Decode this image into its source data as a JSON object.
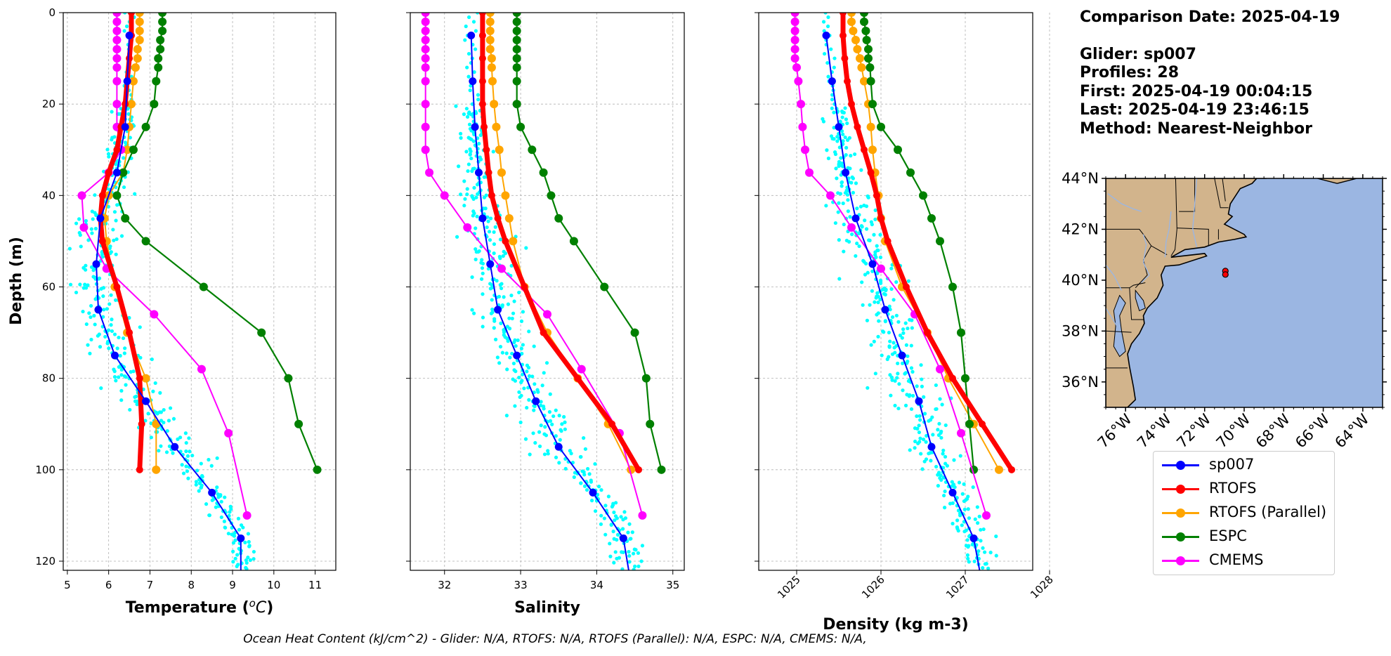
{
  "info": {
    "comparison_date": "Comparison Date: 2025-04-19",
    "glider": "Glider: sp007",
    "profiles": "Profiles: 28",
    "first": "First: 2025-04-19 00:04:15",
    "last": "Last: 2025-04-19 23:46:15",
    "method": "Method: Nearest-Neighbor"
  },
  "footer": "Ocean Heat Content (kJ/cm^2) - Glider: N/A,  RTOFS: N/A,  RTOFS (Parallel): N/A,  ESPC: N/A,  CMEMS: N/A,",
  "colors": {
    "sp007": "#0000ff",
    "RTOFS": "#ff0000",
    "RTOFS (Parallel)": "#ffa500",
    "ESPC": "#008000",
    "CMEMS": "#ff00ff",
    "scatter": "#00ffff",
    "land": "#d2b48c",
    "ocean": "#9bb6e2"
  },
  "legend": [
    {
      "label": "sp007",
      "color": "#0000ff"
    },
    {
      "label": "RTOFS",
      "color": "#ff0000"
    },
    {
      "label": "RTOFS (Parallel)",
      "color": "#ffa500"
    },
    {
      "label": "ESPC",
      "color": "#008000"
    },
    {
      "label": "CMEMS",
      "color": "#ff00ff"
    }
  ],
  "chart_data": [
    {
      "type": "line",
      "xlabel": "Temperature (°C)",
      "ylabel": "Depth (m)",
      "xlim": [
        4.9,
        11.5
      ],
      "ylim": [
        122,
        0
      ],
      "xticks": [
        "5",
        "6",
        "7",
        "8",
        "9",
        "10",
        "11"
      ],
      "yticks": [
        "0",
        "20",
        "40",
        "60",
        "80",
        "100",
        "120"
      ],
      "grid": true,
      "series": [
        {
          "name": "sp007",
          "depth": [
            5,
            15,
            25,
            35,
            45,
            55,
            65,
            75,
            85,
            95,
            105,
            115,
            125
          ],
          "values": [
            6.5,
            6.45,
            6.4,
            6.2,
            5.8,
            5.7,
            5.75,
            6.15,
            6.9,
            7.6,
            8.5,
            9.2,
            9.2
          ]
        },
        {
          "name": "RTOFS",
          "depth": [
            0,
            5,
            10,
            15,
            20,
            25,
            30,
            35,
            40,
            45,
            50,
            60,
            70,
            80,
            90,
            100
          ],
          "values": [
            6.55,
            6.55,
            6.5,
            6.45,
            6.4,
            6.3,
            6.2,
            6.0,
            5.85,
            5.8,
            5.85,
            6.2,
            6.5,
            6.75,
            6.8,
            6.75
          ]
        },
        {
          "name": "RTOFS (Parallel)",
          "depth": [
            0,
            2,
            4,
            6,
            8,
            10,
            12,
            15,
            20,
            25,
            30,
            35,
            40,
            45,
            50,
            60,
            70,
            80,
            90,
            100
          ],
          "values": [
            6.75,
            6.75,
            6.75,
            6.75,
            6.7,
            6.7,
            6.65,
            6.6,
            6.55,
            6.5,
            6.45,
            6.35,
            6.0,
            5.9,
            5.95,
            6.15,
            6.45,
            6.9,
            7.15,
            7.15
          ]
        },
        {
          "name": "ESPC",
          "depth": [
            0,
            2,
            4,
            6,
            8,
            10,
            12,
            15,
            20,
            25,
            30,
            35,
            40,
            45,
            50,
            60,
            70,
            80,
            90,
            100
          ],
          "values": [
            7.3,
            7.3,
            7.3,
            7.25,
            7.25,
            7.2,
            7.2,
            7.15,
            7.1,
            6.9,
            6.6,
            6.35,
            6.2,
            6.4,
            6.9,
            8.3,
            9.7,
            10.35,
            10.6,
            11.05
          ]
        },
        {
          "name": "CMEMS",
          "depth": [
            0,
            2,
            4,
            6,
            8,
            10,
            12,
            15,
            20,
            25,
            30,
            35,
            40,
            47,
            56,
            66,
            78,
            92,
            110
          ],
          "values": [
            6.2,
            6.2,
            6.2,
            6.2,
            6.2,
            6.2,
            6.2,
            6.2,
            6.2,
            6.2,
            6.3,
            6.0,
            5.35,
            5.4,
            5.95,
            7.1,
            8.25,
            8.9,
            9.35
          ]
        }
      ]
    },
    {
      "type": "line",
      "xlabel": "Salinity",
      "xlim": [
        31.55,
        35.15
      ],
      "ylim": [
        122,
        0
      ],
      "xticks": [
        "32",
        "33",
        "34",
        "35"
      ],
      "yticks": [
        "0",
        "20",
        "40",
        "60",
        "80",
        "100",
        "120"
      ],
      "grid": true,
      "series": [
        {
          "name": "sp007",
          "depth": [
            5,
            15,
            25,
            35,
            45,
            55,
            65,
            75,
            85,
            95,
            105,
            115,
            125
          ],
          "values": [
            32.35,
            32.37,
            32.4,
            32.45,
            32.5,
            32.6,
            32.7,
            32.95,
            33.2,
            33.5,
            33.95,
            34.35,
            34.45
          ]
        },
        {
          "name": "RTOFS",
          "depth": [
            0,
            5,
            10,
            15,
            20,
            25,
            30,
            35,
            40,
            45,
            50,
            60,
            70,
            80,
            90,
            100
          ],
          "values": [
            32.5,
            32.5,
            32.5,
            32.5,
            32.5,
            32.52,
            32.55,
            32.58,
            32.62,
            32.7,
            32.8,
            33.05,
            33.3,
            33.75,
            34.2,
            34.55
          ]
        },
        {
          "name": "RTOFS (Parallel)",
          "depth": [
            0,
            2,
            4,
            6,
            8,
            10,
            12,
            15,
            20,
            25,
            30,
            35,
            40,
            45,
            50,
            60,
            70,
            80,
            90,
            100
          ],
          "values": [
            32.6,
            32.6,
            32.6,
            32.6,
            32.6,
            32.62,
            32.62,
            32.63,
            32.65,
            32.68,
            32.72,
            32.75,
            32.8,
            32.85,
            32.9,
            33.05,
            33.35,
            33.75,
            34.15,
            34.45
          ]
        },
        {
          "name": "ESPC",
          "depth": [
            0,
            2,
            4,
            6,
            8,
            10,
            12,
            15,
            20,
            25,
            30,
            35,
            40,
            45,
            50,
            60,
            70,
            80,
            90,
            100
          ],
          "values": [
            32.95,
            32.95,
            32.95,
            32.95,
            32.95,
            32.95,
            32.95,
            32.95,
            32.95,
            33.0,
            33.15,
            33.3,
            33.4,
            33.5,
            33.7,
            34.1,
            34.5,
            34.65,
            34.7,
            34.85
          ]
        },
        {
          "name": "CMEMS",
          "depth": [
            0,
            2,
            4,
            6,
            8,
            10,
            12,
            15,
            20,
            25,
            30,
            35,
            40,
            47,
            56,
            66,
            78,
            92,
            110
          ],
          "values": [
            31.75,
            31.75,
            31.75,
            31.75,
            31.75,
            31.75,
            31.75,
            31.75,
            31.75,
            31.75,
            31.75,
            31.8,
            32.0,
            32.3,
            32.75,
            33.35,
            33.8,
            34.3,
            34.6
          ]
        }
      ]
    },
    {
      "type": "line",
      "xlabel": "Density (kg m-3)",
      "xlim": [
        1024.55,
        1027.8
      ],
      "ylim": [
        122,
        0
      ],
      "xticks": [
        "1025",
        "1026",
        "1027",
        "1028"
      ],
      "yticks": [
        "0",
        "20",
        "40",
        "60",
        "80",
        "100",
        "120"
      ],
      "grid": true,
      "series": [
        {
          "name": "sp007",
          "depth": [
            5,
            15,
            25,
            35,
            45,
            55,
            65,
            75,
            85,
            95,
            105,
            115,
            125
          ],
          "values": [
            1025.35,
            1025.42,
            1025.5,
            1025.58,
            1025.7,
            1025.9,
            1026.05,
            1026.25,
            1026.45,
            1026.6,
            1026.85,
            1027.1,
            1027.2
          ]
        },
        {
          "name": "RTOFS",
          "depth": [
            0,
            5,
            10,
            15,
            20,
            25,
            30,
            35,
            40,
            45,
            50,
            60,
            70,
            80,
            90,
            100
          ],
          "values": [
            1025.55,
            1025.55,
            1025.57,
            1025.6,
            1025.65,
            1025.72,
            1025.8,
            1025.88,
            1025.95,
            1026.0,
            1026.08,
            1026.3,
            1026.55,
            1026.85,
            1027.2,
            1027.55
          ]
        },
        {
          "name": "RTOFS (Parallel)",
          "depth": [
            0,
            2,
            4,
            6,
            8,
            10,
            12,
            15,
            20,
            25,
            30,
            35,
            40,
            45,
            50,
            60,
            70,
            80,
            90,
            100
          ],
          "values": [
            1025.65,
            1025.65,
            1025.67,
            1025.7,
            1025.72,
            1025.75,
            1025.77,
            1025.8,
            1025.85,
            1025.88,
            1025.9,
            1025.93,
            1025.97,
            1026.0,
            1026.05,
            1026.25,
            1026.55,
            1026.8,
            1027.1,
            1027.4
          ]
        },
        {
          "name": "ESPC",
          "depth": [
            0,
            2,
            4,
            6,
            8,
            10,
            12,
            15,
            20,
            25,
            30,
            35,
            40,
            45,
            50,
            60,
            70,
            80,
            90,
            100
          ],
          "values": [
            1025.8,
            1025.8,
            1025.82,
            1025.83,
            1025.85,
            1025.85,
            1025.87,
            1025.88,
            1025.9,
            1026.0,
            1026.2,
            1026.35,
            1026.5,
            1026.6,
            1026.7,
            1026.85,
            1026.95,
            1027.0,
            1027.05,
            1027.1
          ]
        },
        {
          "name": "CMEMS",
          "depth": [
            0,
            2,
            4,
            6,
            8,
            10,
            12,
            15,
            20,
            25,
            30,
            35,
            40,
            47,
            56,
            66,
            78,
            92,
            110
          ],
          "values": [
            1024.98,
            1024.98,
            1024.98,
            1024.98,
            1024.98,
            1024.98,
            1025.0,
            1025.02,
            1025.05,
            1025.07,
            1025.1,
            1025.15,
            1025.4,
            1025.65,
            1026.0,
            1026.4,
            1026.7,
            1026.95,
            1027.25
          ]
        }
      ]
    }
  ],
  "map": {
    "lat_ticks": [
      "44°N",
      "42°N",
      "40°N",
      "38°N",
      "36°N"
    ],
    "lon_ticks": [
      "76°W",
      "74°W",
      "72°W",
      "70°W",
      "68°W",
      "66°W",
      "64°W"
    ],
    "extent": {
      "lon": [
        -77,
        -63
      ],
      "lat": [
        35,
        44
      ]
    },
    "glider_position": {
      "lon": -70.95,
      "lat": 40.25
    }
  }
}
